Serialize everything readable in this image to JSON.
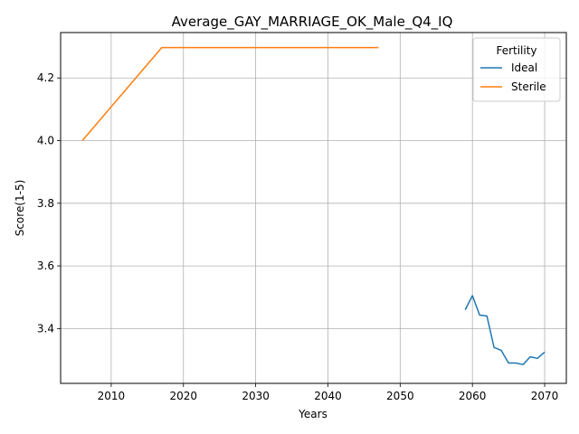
{
  "chart_data": {
    "type": "line",
    "title": "Average_GAY_MARRIAGE_OK_Male_Q4_IQ",
    "xlabel": "Years",
    "ylabel": "Score(1-5)",
    "xlim": [
      2003,
      2073
    ],
    "ylim": [
      3.225,
      4.345
    ],
    "xticks": [
      2010,
      2020,
      2030,
      2040,
      2050,
      2060,
      2070
    ],
    "yticks": [
      3.4,
      3.6,
      3.8,
      4.0,
      4.2
    ],
    "grid": true,
    "legend": {
      "title": "Fertility",
      "placement": "top-right"
    },
    "series": [
      {
        "name": "Ideal",
        "color": "#1f77b4",
        "x": [
          2059,
          2060,
          2061,
          2062,
          2063,
          2064,
          2065,
          2066,
          2067,
          2068,
          2069,
          2070
        ],
        "y": [
          3.46,
          3.505,
          3.443,
          3.44,
          3.34,
          3.33,
          3.29,
          3.29,
          3.285,
          3.31,
          3.305,
          3.325
        ]
      },
      {
        "name": "Sterile",
        "color": "#ff7f0e",
        "x": [
          2006,
          2017,
          2047
        ],
        "y": [
          4.0,
          4.297,
          4.297
        ]
      }
    ]
  }
}
